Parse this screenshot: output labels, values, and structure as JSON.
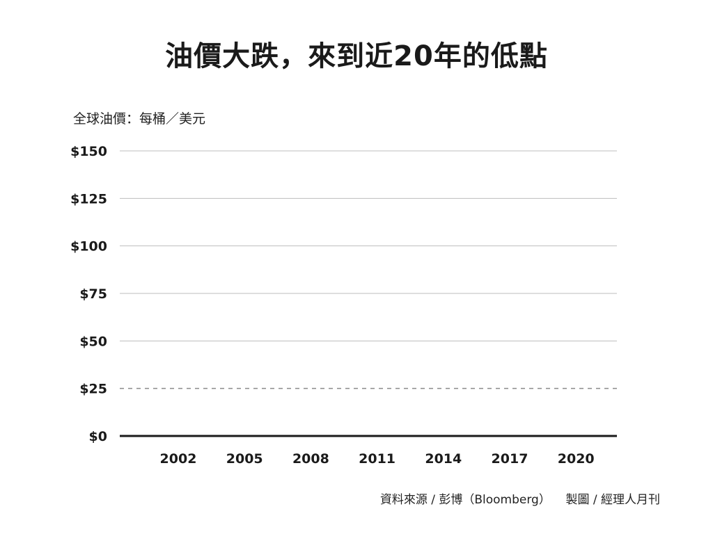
{
  "chart_data": {
    "type": "line",
    "title": "油價大跌，來到近20年的低點",
    "unit_label": "全球油價：每桶／美元",
    "ylim": [
      0,
      150
    ],
    "y_ticks": [
      {
        "value": 150,
        "label": "$150",
        "style": "solid"
      },
      {
        "value": 125,
        "label": "$125",
        "style": "solid"
      },
      {
        "value": 100,
        "label": "$100",
        "style": "solid"
      },
      {
        "value": 75,
        "label": "$75",
        "style": "solid"
      },
      {
        "value": 50,
        "label": "$50",
        "style": "solid"
      },
      {
        "value": 25,
        "label": "$25",
        "style": "dashed"
      },
      {
        "value": 0,
        "label": "$0",
        "style": "baseline"
      }
    ],
    "x_ticks": [
      "2002",
      "2005",
      "2008",
      "2011",
      "2014",
      "2017",
      "2020"
    ],
    "series": [],
    "grid": true,
    "source": "資料來源 / 彭博（Bloomberg）    製圖 / 經理人月刊"
  },
  "colors": {
    "grid": "#bdbdbd",
    "dashed": "#8a8a8a",
    "baseline": "#1a1a1a",
    "text": "#1a1a1a"
  }
}
